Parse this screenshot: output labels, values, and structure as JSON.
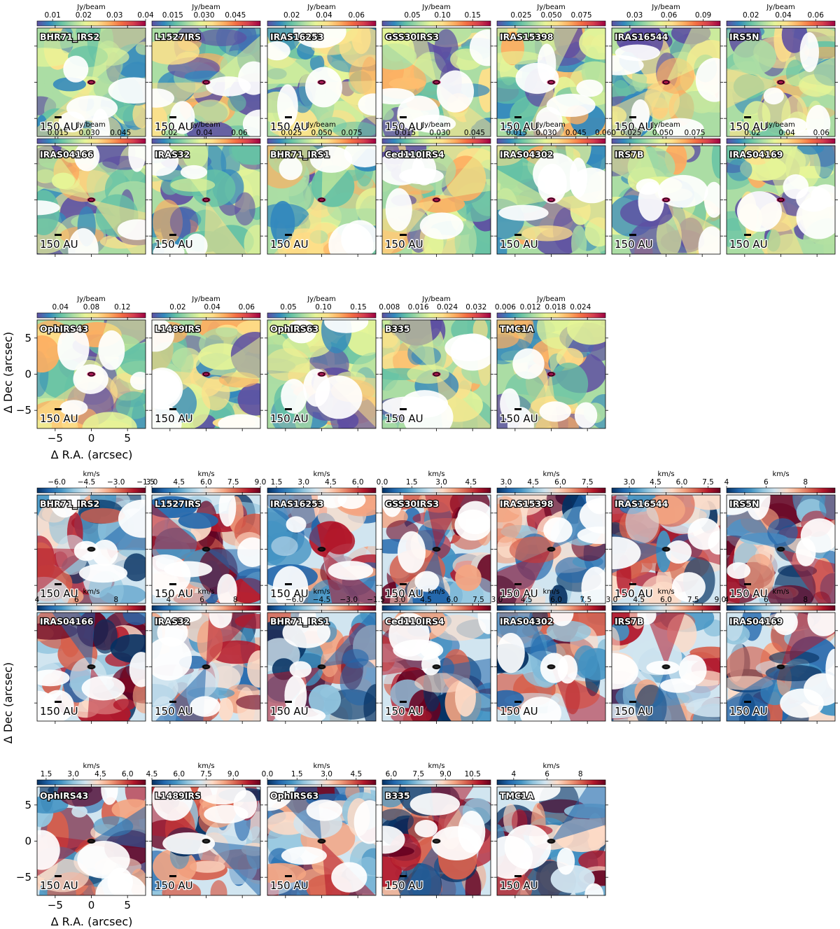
{
  "units": {
    "intensity": "Jy/beam",
    "velocity": "km/s"
  },
  "scale_bar_text": "150 AU",
  "x_axis_label": "Δ R.A. (arcsec)",
  "y_axis_label": "Δ Dec (arcsec)",
  "axis_ticks": {
    "x": [
      "−5",
      "0",
      "5"
    ],
    "y": [
      "5",
      "0",
      "−5"
    ]
  },
  "axis_range": [
    -7.5,
    7.5
  ],
  "colormaps": {
    "intensity": "Spectral_r",
    "velocity": "RdBu_r"
  },
  "chart_data": [
    {
      "type": "heatmap",
      "quantity": "intensity",
      "colorbar_label": "Jy/beam",
      "panels": [
        {
          "name": "BHR71_IRS2",
          "cbar_ticks": [
            "0.01",
            "0.02",
            "0.03",
            "0.04"
          ],
          "cbar_range": [
            0.005,
            0.04
          ]
        },
        {
          "name": "L1527IRS",
          "cbar_ticks": [
            "0.015",
            "0.030",
            "0.045"
          ],
          "cbar_range": [
            0.005,
            0.057
          ]
        },
        {
          "name": "IRAS16253",
          "cbar_ticks": [
            "0.02",
            "0.04",
            "0.06"
          ],
          "cbar_range": [
            0.005,
            0.072
          ]
        },
        {
          "name": "GSS30IRS3",
          "cbar_ticks": [
            "0.05",
            "0.10",
            "0.15"
          ],
          "cbar_range": [
            0.0,
            0.18
          ]
        },
        {
          "name": "IRAS15398",
          "cbar_ticks": [
            "0.025",
            "0.050",
            "0.075"
          ],
          "cbar_range": [
            0.005,
            0.095
          ]
        },
        {
          "name": "IRAS16544",
          "cbar_ticks": [
            "0.03",
            "0.06",
            "0.09"
          ],
          "cbar_range": [
            0.01,
            0.105
          ]
        },
        {
          "name": "IRS5N",
          "cbar_ticks": [
            "0.02",
            "0.04",
            "0.06"
          ],
          "cbar_range": [
            0.005,
            0.072
          ]
        },
        {
          "name": "IRAS04166",
          "cbar_ticks": [
            "0.015",
            "0.030",
            "0.045"
          ],
          "cbar_range": [
            0.005,
            0.057
          ]
        },
        {
          "name": "IRAS32",
          "cbar_ticks": [
            "0.02",
            "0.04",
            "0.06"
          ],
          "cbar_range": [
            0.01,
            0.072
          ]
        },
        {
          "name": "BHR71_IRS1",
          "cbar_ticks": [
            "0.025",
            "0.050",
            "0.075"
          ],
          "cbar_range": [
            0.005,
            0.095
          ]
        },
        {
          "name": "Ced110IRS4",
          "cbar_ticks": [
            "0.015",
            "0.030",
            "0.045"
          ],
          "cbar_range": [
            0.005,
            0.052
          ]
        },
        {
          "name": "IRAS04302",
          "cbar_ticks": [
            "0.015",
            "0.030",
            "0.045",
            "0.060"
          ],
          "cbar_range": [
            0.005,
            0.06
          ]
        },
        {
          "name": "IRS7B",
          "cbar_ticks": [
            "0.025",
            "0.050",
            "0.075"
          ],
          "cbar_range": [
            0.01,
            0.095
          ]
        },
        {
          "name": "IRAS04169",
          "cbar_ticks": [
            "0.02",
            "0.04",
            "0.06"
          ],
          "cbar_range": [
            0.005,
            0.068
          ]
        },
        {
          "name": "OphIRS43",
          "cbar_ticks": [
            "0.04",
            "0.08",
            "0.12"
          ],
          "cbar_range": [
            0.01,
            0.15
          ]
        },
        {
          "name": "L1489IRS",
          "cbar_ticks": [
            "0.02",
            "0.04",
            "0.06"
          ],
          "cbar_range": [
            0.005,
            0.068
          ]
        },
        {
          "name": "OphIRS63",
          "cbar_ticks": [
            "0.05",
            "0.10",
            "0.15"
          ],
          "cbar_range": [
            0.02,
            0.175
          ]
        },
        {
          "name": "B335",
          "cbar_ticks": [
            "0.008",
            "0.016",
            "0.024",
            "0.032"
          ],
          "cbar_range": [
            0.006,
            0.036
          ]
        },
        {
          "name": "TMC1A",
          "cbar_ticks": [
            "0.006",
            "0.012",
            "0.018",
            "0.024"
          ],
          "cbar_range": [
            0.004,
            0.03
          ]
        }
      ]
    },
    {
      "type": "heatmap",
      "quantity": "velocity",
      "colorbar_label": "km/s",
      "panels": [
        {
          "name": "BHR71_IRS2",
          "cbar_ticks": [
            "−6.0",
            "−4.5",
            "−3.0",
            "−1.5"
          ],
          "cbar_range": [
            -7.0,
            -1.5
          ]
        },
        {
          "name": "L1527IRS",
          "cbar_ticks": [
            "3.0",
            "4.5",
            "6.0",
            "7.5",
            "9.0"
          ],
          "cbar_range": [
            3.0,
            9.0
          ]
        },
        {
          "name": "IRAS16253",
          "cbar_ticks": [
            "1.5",
            "3.0",
            "4.5",
            "6.0"
          ],
          "cbar_range": [
            1.0,
            7.0
          ]
        },
        {
          "name": "GSS30IRS3",
          "cbar_ticks": [
            "0.0",
            "1.5",
            "3.0",
            "4.5"
          ],
          "cbar_range": [
            0.0,
            5.5
          ]
        },
        {
          "name": "IRAS15398",
          "cbar_ticks": [
            "3.0",
            "4.5",
            "6.0",
            "7.5"
          ],
          "cbar_range": [
            2.5,
            8.5
          ]
        },
        {
          "name": "IRAS16544",
          "cbar_ticks": [
            "3.0",
            "4.5",
            "6.0",
            "7.5"
          ],
          "cbar_range": [
            2.0,
            8.2
          ]
        },
        {
          "name": "IRS5N",
          "cbar_ticks": [
            "4",
            "6",
            "8"
          ],
          "cbar_range": [
            4.0,
            9.5
          ]
        },
        {
          "name": "IRAS04166",
          "cbar_ticks": [
            "4",
            "6",
            "8"
          ],
          "cbar_range": [
            4.0,
            9.5
          ]
        },
        {
          "name": "IRAS32",
          "cbar_ticks": [
            "4",
            "6",
            "8"
          ],
          "cbar_range": [
            3.0,
            9.5
          ]
        },
        {
          "name": "BHR71_IRS1",
          "cbar_ticks": [
            "−6.0",
            "−4.5",
            "−3.0",
            "−1.5"
          ],
          "cbar_range": [
            -7.5,
            -1.5
          ]
        },
        {
          "name": "Ced110IRS4",
          "cbar_ticks": [
            "3.0",
            "4.5",
            "6.0",
            "7.5"
          ],
          "cbar_range": [
            2.0,
            8.2
          ]
        },
        {
          "name": "IRAS04302",
          "cbar_ticks": [
            "3.0",
            "4.5",
            "6.0",
            "7.5"
          ],
          "cbar_range": [
            3.0,
            8.5
          ]
        },
        {
          "name": "IRS7B",
          "cbar_ticks": [
            "3.0",
            "4.5",
            "6.0",
            "7.5",
            "9.0"
          ],
          "cbar_range": [
            3.0,
            9.0
          ]
        },
        {
          "name": "IRAS04169",
          "cbar_ticks": [
            "4",
            "6",
            "8"
          ],
          "cbar_range": [
            4.0,
            9.5
          ]
        },
        {
          "name": "OphIRS43",
          "cbar_ticks": [
            "1.5",
            "3.0",
            "4.5",
            "6.0"
          ],
          "cbar_range": [
            1.0,
            7.0
          ]
        },
        {
          "name": "L1489IRS",
          "cbar_ticks": [
            "4.5",
            "6.0",
            "7.5",
            "9.0"
          ],
          "cbar_range": [
            4.5,
            10.5
          ]
        },
        {
          "name": "OphIRS63",
          "cbar_ticks": [
            "0.0",
            "1.5",
            "3.0",
            "4.5"
          ],
          "cbar_range": [
            0.0,
            5.5
          ]
        },
        {
          "name": "B335",
          "cbar_ticks": [
            "6.0",
            "7.5",
            "9.0",
            "10.5"
          ],
          "cbar_range": [
            5.5,
            11.5
          ]
        },
        {
          "name": "TMC1A",
          "cbar_ticks": [
            "4",
            "6",
            "8"
          ],
          "cbar_range": [
            3.0,
            9.5
          ]
        }
      ]
    }
  ]
}
